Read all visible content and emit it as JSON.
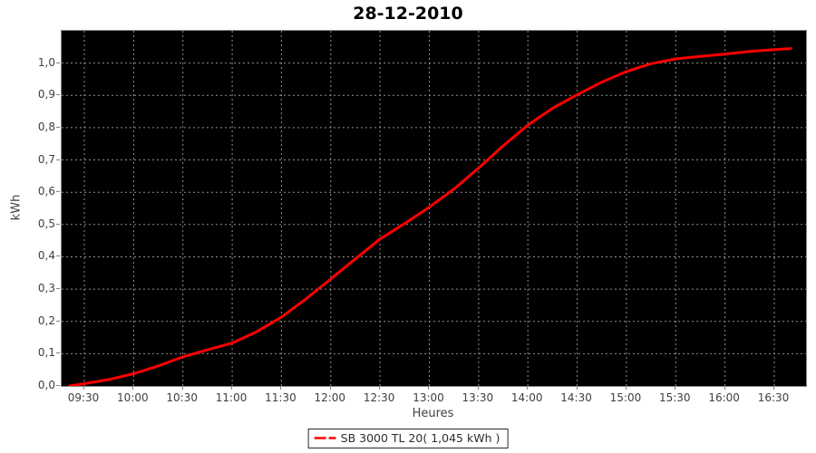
{
  "title": "28-12-2010",
  "colors": {
    "series_red": "#ff0000",
    "plot_background": "#000000",
    "gridline": "#909090",
    "axis_outline": "#848484",
    "tick_text": "#3f3f3f",
    "page_background": "#ffffff"
  },
  "legend": {
    "label": "SB 3000 TL 20( 1,045 kWh )"
  },
  "chart_data": {
    "type": "line",
    "title": "28-12-2010",
    "xlabel": "Heures",
    "ylabel": "kWh",
    "grid": true,
    "legend_position": "bottom",
    "plot_background": "#000000",
    "x_tick_labels": [
      "09:30",
      "10:00",
      "10:30",
      "11:00",
      "11:30",
      "12:00",
      "12:30",
      "13:00",
      "13:30",
      "14:00",
      "14:30",
      "15:00",
      "15:30",
      "16:00",
      "16:30"
    ],
    "y_tick_labels": [
      "0,0",
      "0,1",
      "0,2",
      "0,3",
      "0,4",
      "0,5",
      "0,6",
      "0,7",
      "0,8",
      "0,9",
      "1,0"
    ],
    "y_tick_values": [
      0.0,
      0.1,
      0.2,
      0.3,
      0.4,
      0.5,
      0.6,
      0.7,
      0.8,
      0.9,
      1.0
    ],
    "ylim": [
      0.0,
      1.1
    ],
    "xlim_hours": [
      9.27,
      16.82
    ],
    "series": [
      {
        "name": "SB 3000 TL 20( 1,045 kWh )",
        "color": "#ff0000",
        "total_kwh_label": "1,045",
        "points": [
          {
            "time": "09:21",
            "kwh": 0.0
          },
          {
            "time": "09:30",
            "kwh": 0.007
          },
          {
            "time": "09:45",
            "kwh": 0.02
          },
          {
            "time": "10:00",
            "kwh": 0.038
          },
          {
            "time": "10:15",
            "kwh": 0.062
          },
          {
            "time": "10:30",
            "kwh": 0.09
          },
          {
            "time": "10:45",
            "kwh": 0.112
          },
          {
            "time": "11:00",
            "kwh": 0.133
          },
          {
            "time": "11:15",
            "kwh": 0.168
          },
          {
            "time": "11:30",
            "kwh": 0.213
          },
          {
            "time": "11:45",
            "kwh": 0.27
          },
          {
            "time": "12:00",
            "kwh": 0.331
          },
          {
            "time": "12:15",
            "kwh": 0.394
          },
          {
            "time": "12:30",
            "kwh": 0.455
          },
          {
            "time": "12:45",
            "kwh": 0.503
          },
          {
            "time": "13:00",
            "kwh": 0.554
          },
          {
            "time": "13:15",
            "kwh": 0.61
          },
          {
            "time": "13:30",
            "kwh": 0.675
          },
          {
            "time": "13:45",
            "kwh": 0.744
          },
          {
            "time": "14:00",
            "kwh": 0.808
          },
          {
            "time": "14:15",
            "kwh": 0.86
          },
          {
            "time": "14:30",
            "kwh": 0.902
          },
          {
            "time": "14:45",
            "kwh": 0.941
          },
          {
            "time": "15:00",
            "kwh": 0.974
          },
          {
            "time": "15:15",
            "kwh": 0.998
          },
          {
            "time": "15:30",
            "kwh": 1.013
          },
          {
            "time": "15:45",
            "kwh": 1.021
          },
          {
            "time": "16:00",
            "kwh": 1.028
          },
          {
            "time": "16:15",
            "kwh": 1.036
          },
          {
            "time": "16:30",
            "kwh": 1.042
          },
          {
            "time": "16:40",
            "kwh": 1.045
          }
        ]
      }
    ]
  }
}
